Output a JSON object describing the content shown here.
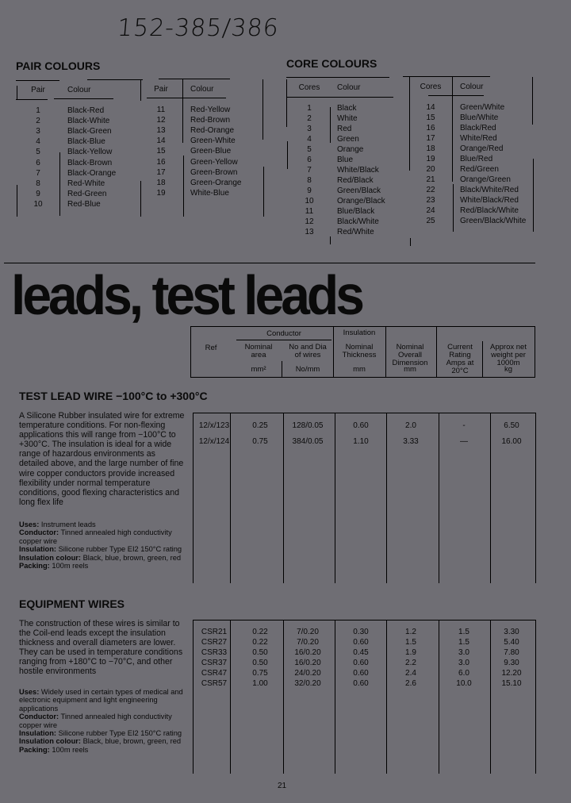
{
  "handwritten_ref": "152-385/386",
  "pair_colours": {
    "title": "PAIR COLOURS",
    "col_pair": "Pair",
    "col_colour": "Colour",
    "rows": [
      [
        "1",
        "Black-Red"
      ],
      [
        "2",
        "Black-White"
      ],
      [
        "3",
        "Black-Green"
      ],
      [
        "4",
        "Black-Blue"
      ],
      [
        "5",
        "Black-Yellow"
      ],
      [
        "6",
        "Black-Brown"
      ],
      [
        "7",
        "Black-Orange"
      ],
      [
        "8",
        "Red-White"
      ],
      [
        "9",
        "Red-Green"
      ],
      [
        "10",
        "Red-Blue"
      ],
      [
        "11",
        "Red-Yellow"
      ],
      [
        "12",
        "Red-Brown"
      ],
      [
        "13",
        "Red-Orange"
      ],
      [
        "14",
        "Green-White"
      ],
      [
        "15",
        "Green-Blue"
      ],
      [
        "16",
        "Green-Yellow"
      ],
      [
        "17",
        "Green-Brown"
      ],
      [
        "18",
        "Green-Orange"
      ],
      [
        "19",
        "White-Blue"
      ]
    ]
  },
  "core_colours": {
    "title": "CORE COLOURS",
    "col_cores": "Cores",
    "col_colour": "Colour",
    "rows": [
      [
        "1",
        "Black"
      ],
      [
        "2",
        "White"
      ],
      [
        "3",
        "Red"
      ],
      [
        "4",
        "Green"
      ],
      [
        "5",
        "Orange"
      ],
      [
        "6",
        "Blue"
      ],
      [
        "7",
        "White/Black"
      ],
      [
        "8",
        "Red/Black"
      ],
      [
        "9",
        "Green/Black"
      ],
      [
        "10",
        "Orange/Black"
      ],
      [
        "11",
        "Blue/Black"
      ],
      [
        "12",
        "Black/White"
      ],
      [
        "13",
        "Red/White"
      ],
      [
        "14",
        "Green/White"
      ],
      [
        "15",
        "Blue/White"
      ],
      [
        "16",
        "Black/Red"
      ],
      [
        "17",
        "White/Red"
      ],
      [
        "18",
        "Orange/Red"
      ],
      [
        "19",
        "Blue/Red"
      ],
      [
        "20",
        "Red/Green"
      ],
      [
        "21",
        "Orange/Green"
      ],
      [
        "22",
        "Black/White/Red"
      ],
      [
        "23",
        "White/Black/Red"
      ],
      [
        "24",
        "Red/Black/White"
      ],
      [
        "25",
        "Green/Black/White"
      ]
    ]
  },
  "banner": "leads, test leads",
  "spec_header": {
    "conductor": "Conductor",
    "insulation": "Insulation",
    "ref": "Ref",
    "area": "Nominal area",
    "area_unit": "mm²",
    "wires": "No and Dia of wires",
    "wires_unit": "No/mm",
    "thickness": "Nominal Thickness",
    "thickness_unit": "mm",
    "dimension": "Nominal Overall Dimension",
    "dimension_unit": "mm",
    "current": "Current Rating Amps at 20°C",
    "weight": "Approx net weight per 1000m",
    "weight_unit": "kg"
  },
  "test_lead": {
    "title": "TEST LEAD WIRE −100°C to +300°C",
    "description": "A Silicone Rubber insulated wire for extreme temperature conditions. For non-flexing applications this will range from −100°C to +300°C. The insulation is ideal for a wide range of hazardous environments as detailed above, and the large number of fine wire copper conductors provide increased flexibility under normal temperature conditions, good flexing characteristics and long flex life",
    "specs": [
      [
        "Uses:",
        "Instrument leads"
      ],
      [
        "Conductor:",
        "Tinned annealed high conductivity copper wire"
      ],
      [
        "Insulation:",
        "Silicone rubber Type EI2 150°C rating"
      ],
      [
        "Insulation colour:",
        "Black, blue, brown, green, red"
      ],
      [
        "Packing:",
        "100m reels"
      ]
    ],
    "rows": [
      [
        "12/x/123",
        "0.25",
        "128/0.05",
        "0.60",
        "2.0",
        "-",
        "6.50"
      ],
      [
        "12/x/124",
        "0.75",
        "384/0.05",
        "1.10",
        "3.33",
        "—",
        "16.00"
      ]
    ]
  },
  "equipment": {
    "title": "EQUIPMENT WIRES",
    "description": "The construction of these wires is similar to the Coil-end leads except the insulation thickness and overall diameters are lower. They can be used in temperature conditions ranging from +180°C to −70°C, and other hostile environments",
    "specs": [
      [
        "Uses:",
        "Widely used in certain types of medical and electronic equipment and light engineering applications"
      ],
      [
        "Conductor:",
        "Tinned annealed high conductivity copper wire"
      ],
      [
        "Insulation:",
        "Silicone rubber Type EI2 150°C rating"
      ],
      [
        "Insulation colour:",
        "Black, blue, brown, green, red"
      ],
      [
        "Packing:",
        "100m reels"
      ]
    ],
    "rows": [
      [
        "CSR21",
        "0.22",
        "7/0.20",
        "0.30",
        "1.2",
        "1.5",
        "3.30"
      ],
      [
        "CSR27",
        "0.22",
        "7/0.20",
        "0.60",
        "1.5",
        "1.5",
        "5.40"
      ],
      [
        "CSR33",
        "0.50",
        "16/0.20",
        "0.45",
        "1.9",
        "3.0",
        "7.80"
      ],
      [
        "CSR37",
        "0.50",
        "16/0.20",
        "0.60",
        "2.2",
        "3.0",
        "9.30"
      ],
      [
        "CSR47",
        "0.75",
        "24/0.20",
        "0.60",
        "2.4",
        "6.0",
        "12.20"
      ],
      [
        "CSR57",
        "1.00",
        "32/0.20",
        "0.60",
        "2.6",
        "10.0",
        "15.10"
      ]
    ]
  },
  "page_number": "21"
}
